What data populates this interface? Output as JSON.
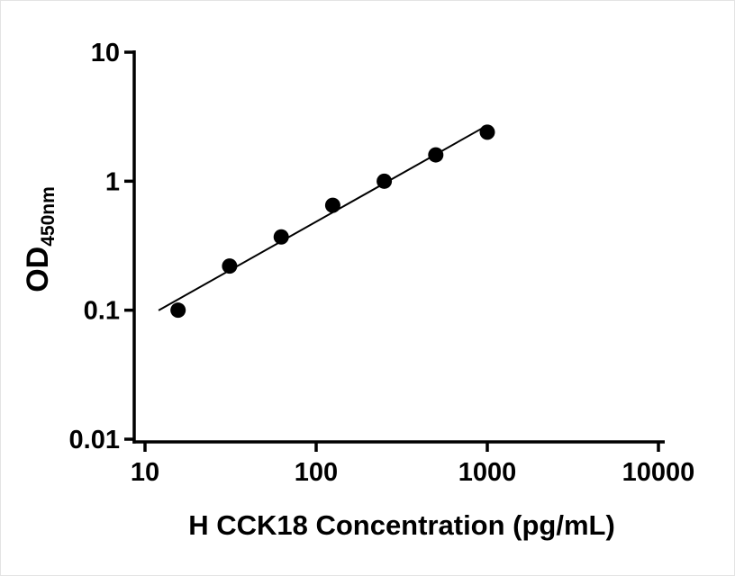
{
  "chart_data": {
    "type": "scatter",
    "title": "",
    "xlabel": "H CCK18 Concentration (pg/mL)",
    "ylabel": "OD",
    "ylabel_subscript": "450nm",
    "xscale": "log",
    "yscale": "log",
    "xlim": [
      10,
      10000
    ],
    "ylim": [
      0.01,
      10
    ],
    "x_ticks": [
      10,
      100,
      1000,
      10000
    ],
    "x_tick_labels": [
      "10",
      "100",
      "1000",
      "10000"
    ],
    "y_ticks": [
      0.01,
      0.1,
      1,
      10
    ],
    "y_tick_labels": [
      "0.01",
      "0.1",
      "1",
      "10"
    ],
    "x": [
      15.6,
      31.2,
      62.5,
      125,
      250,
      500,
      1000
    ],
    "y": [
      0.1,
      0.22,
      0.37,
      0.65,
      1.0,
      1.6,
      2.4
    ],
    "trendline": {
      "type": "log-log-linear-fit",
      "x_start": 12,
      "x_end": 1000
    },
    "marker": {
      "shape": "circle",
      "color": "#000000",
      "radius_px": 8.5
    },
    "line_color": "#000000",
    "axis_color": "#000000",
    "grid": false,
    "legend": null
  }
}
